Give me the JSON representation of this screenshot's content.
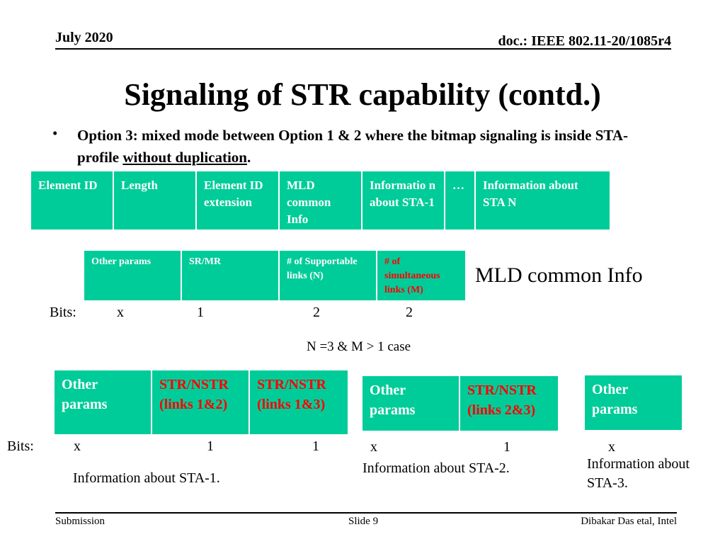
{
  "header": {
    "date": "July 2020",
    "doc": "doc.: IEEE 802.11-20/1085r4"
  },
  "title": "Signaling of STR capability (contd.)",
  "bullet": {
    "symbol": "•",
    "text_before": "Option 3: mixed mode between Option 1 & 2 where the bitmap signaling is inside STA-profile ",
    "underlined": "without duplication",
    "text_after": "."
  },
  "element_table": {
    "cells": [
      "Element ID",
      "Length",
      "Element ID extension",
      "MLD common Info",
      "Informatio n about STA-1",
      "…",
      "Information about  STA N"
    ]
  },
  "mld_common_table": {
    "cells": [
      "Other params",
      "SR/MR",
      "# of Supportable links (N)",
      "# of simultaneous links (M)"
    ],
    "bits_label": "Bits:",
    "bits": [
      "x",
      "1",
      "2",
      "2"
    ],
    "caption": "MLD common Info"
  },
  "case_label": "N =3 & M > 1 case",
  "sta1": {
    "cells": [
      "Other params",
      "STR/NSTR (links 1&2)",
      "STR/NSTR (links 1&3)"
    ],
    "bits_label": "Bits:",
    "bits": [
      "x",
      "1",
      "1"
    ],
    "caption": "Information about STA-1."
  },
  "sta2": {
    "cells": [
      "Other params",
      "STR/NSTR (links 2&3)"
    ],
    "bits": [
      "x",
      "1"
    ],
    "caption": "Information about STA-2."
  },
  "sta3": {
    "cells": [
      "Other params"
    ],
    "bits": [
      "x"
    ],
    "caption_line1": "Information about",
    "caption_line2": "STA-3."
  },
  "footer": {
    "left": "Submission",
    "center": "Slide 9",
    "right": "Dibakar Das etal, Intel"
  },
  "colors": {
    "cell_bg": "#00cc99",
    "cell_text": "#ffffff",
    "highlight_text": "#ff0000"
  }
}
